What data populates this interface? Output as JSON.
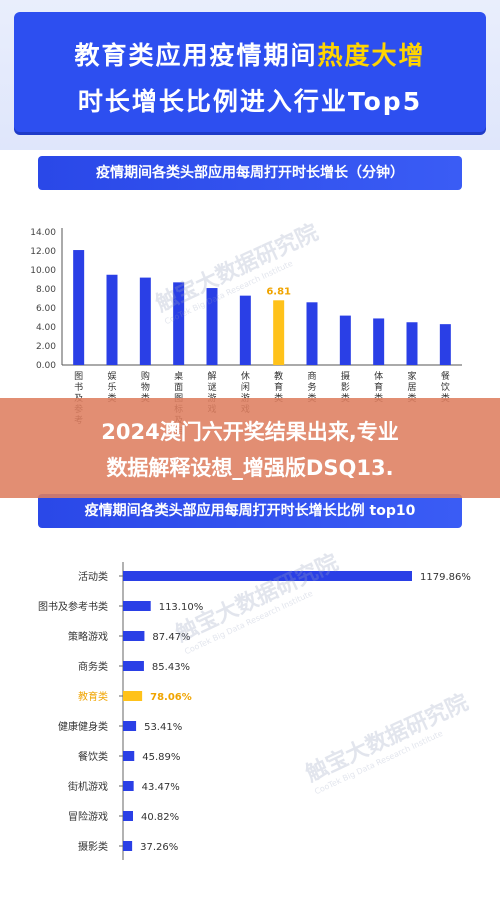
{
  "header": {
    "title_line1_a": "教育类应用疫情期间",
    "title_line1_b": "热度大增",
    "title_line2": "时长增长比例进入行业Top5",
    "accent_color": "#2d4ff0",
    "highlight_color": "#ffd400"
  },
  "banner": {
    "line1": "2024澳门六开奖结果出来,专业",
    "line2": "数据解释设想_增强版DSQ13."
  },
  "watermark": {
    "text": "触宝大数据研究院",
    "subtext": "CooTek Big Data Research Institute"
  },
  "chart_data": [
    {
      "type": "bar",
      "title": "疫情期间各类头部应用每周打开时长增长（分钟）",
      "categories": [
        "图书及参考",
        "娱乐类",
        "购物类",
        "桌面图标及相",
        "解谜游戏",
        "休闲游戏",
        "教育类",
        "商务类",
        "摄影类",
        "体育类",
        "家居类",
        "餐饮类"
      ],
      "values": [
        12.1,
        9.5,
        9.2,
        8.7,
        8.1,
        7.3,
        6.81,
        6.6,
        5.2,
        4.9,
        4.5,
        4.3
      ],
      "highlight_index": 6,
      "highlight_label": "6.81",
      "yticks": [
        "0.00",
        "2.00",
        "4.00",
        "6.00",
        "8.00",
        "10.00",
        "12.00",
        "14.00"
      ],
      "ylim": [
        0,
        14
      ],
      "bar_color": "#2a3fe6",
      "highlight_color": "#ffc21a",
      "grid": false
    },
    {
      "type": "bar",
      "orientation": "horizontal",
      "title": "疫情期间各类头部应用每周打开时长增长比例 top10",
      "categories": [
        "活动类",
        "图书及参考书类",
        "策略游戏",
        "商务类",
        "教育类",
        "健康健身类",
        "餐饮类",
        "街机游戏",
        "冒险游戏",
        "摄影类"
      ],
      "values": [
        1179.86,
        113.1,
        87.47,
        85.43,
        78.06,
        53.41,
        45.89,
        43.47,
        40.82,
        37.26
      ],
      "value_labels": [
        "1179.86%",
        "113.10%",
        "87.47%",
        "85.43%",
        "78.06%",
        "53.41%",
        "45.89%",
        "43.47%",
        "40.82%",
        "37.26%"
      ],
      "highlight_index": 4,
      "bar_color": "#2a3fe6",
      "highlight_color": "#ffc21a",
      "highlight_label_color": "#f0a400"
    }
  ]
}
